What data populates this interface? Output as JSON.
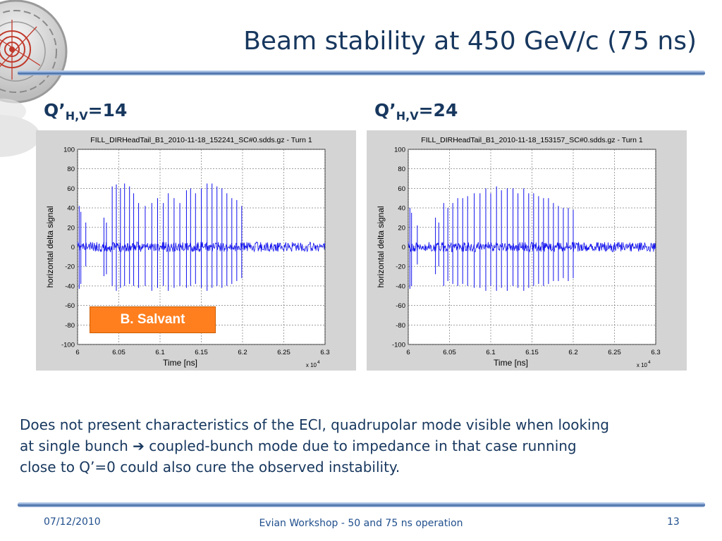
{
  "slide": {
    "title": "Beam stability at 450 GeV/c (75 ns)",
    "left_label": {
      "main": "Q’",
      "sub": "H,V",
      "value": "=14"
    },
    "right_label": {
      "main": "Q’",
      "sub": "H,V",
      "value": "=24"
    },
    "author_badge": "B. Salvant",
    "body_lines": [
      "Does not present characteristics of the ECI, quadrupolar mode visible when looking",
      "at single bunch",
      "coupled-bunch mode due to impedance in that case running",
      "close to Q’=0 could also cure the observed instability."
    ],
    "arrow_glyph": "➔",
    "footer": {
      "date": "07/12/2010",
      "event": "Evian Workshop - 50 and 75 ns operation",
      "page": "13"
    },
    "colors": {
      "title": "#17375e",
      "signal": "#1010ee",
      "badge": "#ff7f1f",
      "panel": "#d4d4d4"
    }
  },
  "chart_data": [
    {
      "type": "line",
      "title": "FILL_DIRHeadTail_B1_2010-11-18_152241_SC#0.sdds.gz - Turn 1",
      "xlabel": "Time [ns]",
      "ylabel": "horizontal delta signal",
      "x_multiplier": "x 10",
      "x_exponent": "4",
      "xlim": [
        6,
        6.3
      ],
      "ylim": [
        -100,
        100
      ],
      "xticks": [
        "6",
        "6.05",
        "6.1",
        "6.15",
        "6.2",
        "6.25",
        "6.3"
      ],
      "yticks": [
        "100",
        "80",
        "60",
        "40",
        "20",
        "0",
        "-20",
        "-40",
        "-60",
        "-80",
        "-100"
      ],
      "grid": true,
      "baseline_noise": 5,
      "spikes": [
        {
          "x": 6.002,
          "hi": 42,
          "lo": -43
        },
        {
          "x": 6.004,
          "hi": 36,
          "lo": -38
        },
        {
          "x": 6.01,
          "hi": 25,
          "lo": -20
        },
        {
          "x": 6.032,
          "hi": 30,
          "lo": -30
        },
        {
          "x": 6.035,
          "hi": 25,
          "lo": -28
        },
        {
          "x": 6.042,
          "hi": 62,
          "lo": -40
        },
        {
          "x": 6.047,
          "hi": 64,
          "lo": -45
        },
        {
          "x": 6.052,
          "hi": 60,
          "lo": -42
        },
        {
          "x": 6.057,
          "hi": 65,
          "lo": -40
        },
        {
          "x": 6.063,
          "hi": 62,
          "lo": -38
        },
        {
          "x": 6.068,
          "hi": 55,
          "lo": -40
        },
        {
          "x": 6.074,
          "hi": 45,
          "lo": -42
        },
        {
          "x": 6.082,
          "hi": 42,
          "lo": -40
        },
        {
          "x": 6.09,
          "hi": 45,
          "lo": -45
        },
        {
          "x": 6.097,
          "hi": 50,
          "lo": -42
        },
        {
          "x": 6.104,
          "hi": 45,
          "lo": -40
        },
        {
          "x": 6.11,
          "hi": 55,
          "lo": -45
        },
        {
          "x": 6.117,
          "hi": 50,
          "lo": -42
        },
        {
          "x": 6.124,
          "hi": 45,
          "lo": -40
        },
        {
          "x": 6.132,
          "hi": 58,
          "lo": -42
        },
        {
          "x": 6.137,
          "hi": 60,
          "lo": -40
        },
        {
          "x": 6.143,
          "hi": 55,
          "lo": -38
        },
        {
          "x": 6.15,
          "hi": 60,
          "lo": -42
        },
        {
          "x": 6.157,
          "hi": 65,
          "lo": -45
        },
        {
          "x": 6.163,
          "hi": 65,
          "lo": -42
        },
        {
          "x": 6.169,
          "hi": 62,
          "lo": -40
        },
        {
          "x": 6.175,
          "hi": 60,
          "lo": -42
        },
        {
          "x": 6.181,
          "hi": 55,
          "lo": -40
        },
        {
          "x": 6.187,
          "hi": 50,
          "lo": -38
        },
        {
          "x": 6.193,
          "hi": 48,
          "lo": -35
        },
        {
          "x": 6.199,
          "hi": 42,
          "lo": -32
        }
      ]
    },
    {
      "type": "line",
      "title": "FILL_DIRHeadTail_B1_2010-11-18_153157_SC#0.sdds.gz - Turn 1",
      "xlabel": "Time [ns]",
      "ylabel": "horizontal delta signal",
      "x_multiplier": "x 10",
      "x_exponent": "4",
      "xlim": [
        6,
        6.3
      ],
      "ylim": [
        -100,
        100
      ],
      "xticks": [
        "6",
        "6.05",
        "6.1",
        "6.15",
        "6.2",
        "6.25",
        "6.3"
      ],
      "yticks": [
        "100",
        "80",
        "60",
        "40",
        "20",
        "0",
        "-20",
        "-40",
        "-60",
        "-80",
        "-100"
      ],
      "grid": true,
      "baseline_noise": 5,
      "spikes": [
        {
          "x": 6.002,
          "hi": 40,
          "lo": -43
        },
        {
          "x": 6.004,
          "hi": 35,
          "lo": -40
        },
        {
          "x": 6.011,
          "hi": 22,
          "lo": -18
        },
        {
          "x": 6.033,
          "hi": 30,
          "lo": -28
        },
        {
          "x": 6.037,
          "hi": 25,
          "lo": -20
        },
        {
          "x": 6.043,
          "hi": 45,
          "lo": -40
        },
        {
          "x": 6.048,
          "hi": 40,
          "lo": -35
        },
        {
          "x": 6.054,
          "hi": 45,
          "lo": -38
        },
        {
          "x": 6.06,
          "hi": 50,
          "lo": -40
        },
        {
          "x": 6.066,
          "hi": 50,
          "lo": -38
        },
        {
          "x": 6.072,
          "hi": 52,
          "lo": -40
        },
        {
          "x": 6.08,
          "hi": 55,
          "lo": -42
        },
        {
          "x": 6.087,
          "hi": 55,
          "lo": -42
        },
        {
          "x": 6.094,
          "hi": 60,
          "lo": -45
        },
        {
          "x": 6.1,
          "hi": 55,
          "lo": -40
        },
        {
          "x": 6.107,
          "hi": 62,
          "lo": -45
        },
        {
          "x": 6.113,
          "hi": 58,
          "lo": -42
        },
        {
          "x": 6.12,
          "hi": 60,
          "lo": -45
        },
        {
          "x": 6.127,
          "hi": 60,
          "lo": -40
        },
        {
          "x": 6.133,
          "hi": 55,
          "lo": -42
        },
        {
          "x": 6.14,
          "hi": 60,
          "lo": -45
        },
        {
          "x": 6.146,
          "hi": 55,
          "lo": -42
        },
        {
          "x": 6.152,
          "hi": 55,
          "lo": -40
        },
        {
          "x": 6.158,
          "hi": 52,
          "lo": -38
        },
        {
          "x": 6.164,
          "hi": 50,
          "lo": -40
        },
        {
          "x": 6.17,
          "hi": 50,
          "lo": -38
        },
        {
          "x": 6.176,
          "hi": 45,
          "lo": -35
        },
        {
          "x": 6.182,
          "hi": 42,
          "lo": -35
        },
        {
          "x": 6.188,
          "hi": 40,
          "lo": -32
        },
        {
          "x": 6.194,
          "hi": 40,
          "lo": -35
        },
        {
          "x": 6.2,
          "hi": 38,
          "lo": -32
        }
      ]
    }
  ]
}
